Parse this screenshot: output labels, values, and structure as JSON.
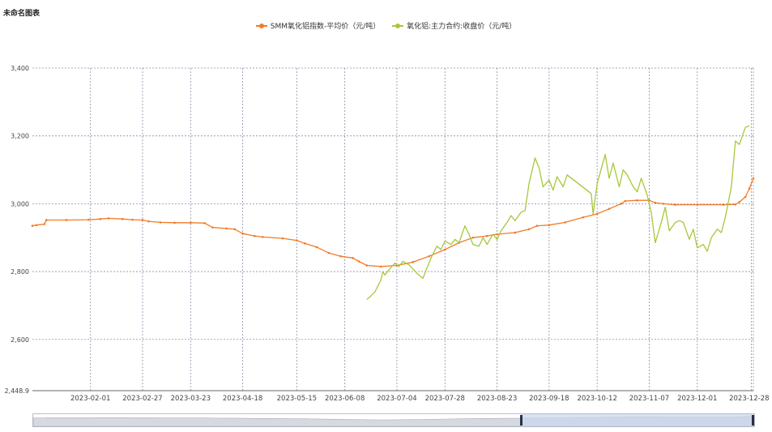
{
  "page": {
    "title": "未命名图表"
  },
  "colors": {
    "series1": "#f07b2a",
    "series2": "#a6c83a",
    "grid": "#8a8fa8",
    "axis": "#444444"
  },
  "chart_data": {
    "type": "line",
    "title": "未命名图表",
    "ylim": [
      2448.9,
      3400
    ],
    "y_ticks": [
      3400,
      3200,
      3000,
      2800,
      2600,
      2448.9
    ],
    "y_tick_labels": [
      "3,400",
      "3,200",
      "3,000",
      "2,800",
      "2,600",
      "2,448.9"
    ],
    "x_range": [
      "2023-01-03",
      "2023-12-29"
    ],
    "x_ticks": [
      "2023-02-01",
      "2023-02-27",
      "2023-03-23",
      "2023-04-18",
      "2023-05-15",
      "2023-06-08",
      "2023-07-04",
      "2023-07-28",
      "2023-08-23",
      "2023-09-18",
      "2023-10-12",
      "2023-11-07",
      "2023-12-01",
      "2023-12-28"
    ],
    "grid": true,
    "legend_position": "top-center",
    "series": [
      {
        "name": "SMM氧化铝指数-平均价（元/吨）",
        "points": [
          [
            "2023-01-03",
            2935
          ],
          [
            "2023-01-05",
            2937
          ],
          [
            "2023-01-09",
            2940
          ],
          [
            "2023-01-10",
            2952
          ],
          [
            "2023-01-20",
            2952
          ],
          [
            "2023-01-31",
            2953
          ],
          [
            "2023-02-06",
            2955
          ],
          [
            "2023-02-10",
            2957
          ],
          [
            "2023-02-17",
            2955
          ],
          [
            "2023-02-22",
            2953
          ],
          [
            "2023-02-27",
            2952
          ],
          [
            "2023-03-02",
            2948
          ],
          [
            "2023-03-08",
            2945
          ],
          [
            "2023-03-15",
            2944
          ],
          [
            "2023-03-23",
            2944
          ],
          [
            "2023-03-30",
            2943
          ],
          [
            "2023-04-03",
            2930
          ],
          [
            "2023-04-10",
            2927
          ],
          [
            "2023-04-14",
            2925
          ],
          [
            "2023-04-18",
            2912
          ],
          [
            "2023-04-24",
            2905
          ],
          [
            "2023-04-28",
            2902
          ],
          [
            "2023-05-08",
            2898
          ],
          [
            "2023-05-15",
            2892
          ],
          [
            "2023-05-19",
            2883
          ],
          [
            "2023-05-25",
            2872
          ],
          [
            "2023-05-31",
            2855
          ],
          [
            "2023-06-06",
            2845
          ],
          [
            "2023-06-12",
            2840
          ],
          [
            "2023-06-15",
            2830
          ],
          [
            "2023-06-19",
            2818
          ],
          [
            "2023-06-26",
            2815
          ],
          [
            "2023-07-04",
            2818
          ],
          [
            "2023-07-12",
            2828
          ],
          [
            "2023-07-20",
            2845
          ],
          [
            "2023-07-28",
            2865
          ],
          [
            "2023-08-04",
            2885
          ],
          [
            "2023-08-11",
            2900
          ],
          [
            "2023-08-18",
            2905
          ],
          [
            "2023-08-23",
            2910
          ],
          [
            "2023-09-01",
            2915
          ],
          [
            "2023-09-08",
            2925
          ],
          [
            "2023-09-12",
            2935
          ],
          [
            "2023-09-18",
            2937
          ],
          [
            "2023-09-26",
            2945
          ],
          [
            "2023-10-05",
            2960
          ],
          [
            "2023-10-12",
            2970
          ],
          [
            "2023-10-18",
            2985
          ],
          [
            "2023-10-24",
            3000
          ],
          [
            "2023-10-26",
            3008
          ],
          [
            "2023-11-01",
            3010
          ],
          [
            "2023-11-07",
            3010
          ],
          [
            "2023-11-10",
            3003
          ],
          [
            "2023-11-14",
            3000
          ],
          [
            "2023-11-20",
            2997
          ],
          [
            "2023-12-01",
            2997
          ],
          [
            "2023-12-14",
            2997
          ],
          [
            "2023-12-20",
            2998
          ],
          [
            "2023-12-22",
            3005
          ],
          [
            "2023-12-25",
            3020
          ],
          [
            "2023-12-27",
            3045
          ],
          [
            "2023-12-29",
            3075
          ]
        ]
      },
      {
        "name": "氧化铝:主力合约:收盘价（元/吨）",
        "points": [
          [
            "2023-06-19",
            2718
          ],
          [
            "2023-06-21",
            2728
          ],
          [
            "2023-06-23",
            2740
          ],
          [
            "2023-06-26",
            2775
          ],
          [
            "2023-06-27",
            2800
          ],
          [
            "2023-06-28",
            2790
          ],
          [
            "2023-06-30",
            2805
          ],
          [
            "2023-07-03",
            2825
          ],
          [
            "2023-07-05",
            2815
          ],
          [
            "2023-07-07",
            2830
          ],
          [
            "2023-07-10",
            2820
          ],
          [
            "2023-07-12",
            2808
          ],
          [
            "2023-07-14",
            2795
          ],
          [
            "2023-07-17",
            2780
          ],
          [
            "2023-07-19",
            2810
          ],
          [
            "2023-07-21",
            2840
          ],
          [
            "2023-07-24",
            2875
          ],
          [
            "2023-07-26",
            2865
          ],
          [
            "2023-07-28",
            2890
          ],
          [
            "2023-07-31",
            2880
          ],
          [
            "2023-08-02",
            2895
          ],
          [
            "2023-08-04",
            2885
          ],
          [
            "2023-08-07",
            2935
          ],
          [
            "2023-08-09",
            2910
          ],
          [
            "2023-08-11",
            2880
          ],
          [
            "2023-08-14",
            2875
          ],
          [
            "2023-08-16",
            2900
          ],
          [
            "2023-08-18",
            2880
          ],
          [
            "2023-08-21",
            2910
          ],
          [
            "2023-08-23",
            2895
          ],
          [
            "2023-08-25",
            2920
          ],
          [
            "2023-08-28",
            2945
          ],
          [
            "2023-08-30",
            2965
          ],
          [
            "2023-09-01",
            2950
          ],
          [
            "2023-09-04",
            2975
          ],
          [
            "2023-09-06",
            2980
          ],
          [
            "2023-09-08",
            3060
          ],
          [
            "2023-09-11",
            3135
          ],
          [
            "2023-09-13",
            3105
          ],
          [
            "2023-09-15",
            3050
          ],
          [
            "2023-09-18",
            3070
          ],
          [
            "2023-09-20",
            3040
          ],
          [
            "2023-09-22",
            3080
          ],
          [
            "2023-09-25",
            3050
          ],
          [
            "2023-09-27",
            3085
          ],
          [
            "2023-10-09",
            3030
          ],
          [
            "2023-10-10",
            2970
          ],
          [
            "2023-10-12",
            3060
          ],
          [
            "2023-10-16",
            3145
          ],
          [
            "2023-10-18",
            3075
          ],
          [
            "2023-10-20",
            3120
          ],
          [
            "2023-10-23",
            3050
          ],
          [
            "2023-10-25",
            3100
          ],
          [
            "2023-10-27",
            3085
          ],
          [
            "2023-10-30",
            3050
          ],
          [
            "2023-11-01",
            3035
          ],
          [
            "2023-11-03",
            3075
          ],
          [
            "2023-11-06",
            3025
          ],
          [
            "2023-11-08",
            2975
          ],
          [
            "2023-11-10",
            2885
          ],
          [
            "2023-11-13",
            2945
          ],
          [
            "2023-11-15",
            2990
          ],
          [
            "2023-11-17",
            2920
          ],
          [
            "2023-11-20",
            2945
          ],
          [
            "2023-11-22",
            2950
          ],
          [
            "2023-11-24",
            2945
          ],
          [
            "2023-11-27",
            2895
          ],
          [
            "2023-11-29",
            2925
          ],
          [
            "2023-12-01",
            2870
          ],
          [
            "2023-12-04",
            2880
          ],
          [
            "2023-12-06",
            2860
          ],
          [
            "2023-12-08",
            2900
          ],
          [
            "2023-12-11",
            2925
          ],
          [
            "2023-12-13",
            2915
          ],
          [
            "2023-12-15",
            2960
          ],
          [
            "2023-12-18",
            3050
          ],
          [
            "2023-12-20",
            3185
          ],
          [
            "2023-12-22",
            3175
          ],
          [
            "2023-12-25",
            3225
          ],
          [
            "2023-12-27",
            3230
          ]
        ]
      }
    ]
  }
}
